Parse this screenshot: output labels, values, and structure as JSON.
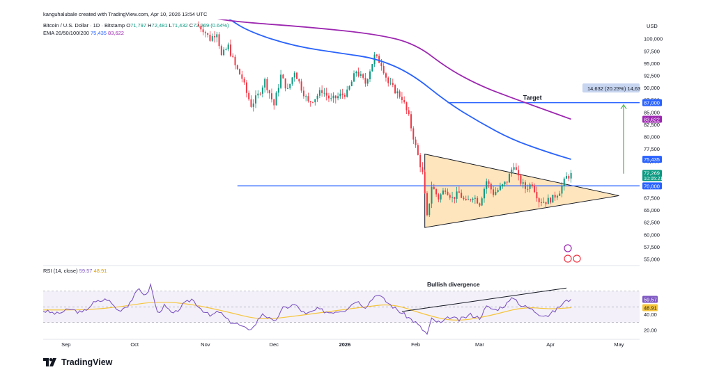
{
  "header": {
    "creator": "kanguhalubale created with TradingView.com, Apr 10, 2026 13:54 UTC",
    "symbol": "Bitcoin / U.S. Dollar · 1D · Bitstamp",
    "ohlc": {
      "o_label": "O",
      "o": "71,797",
      "h_label": "H",
      "h": "72,481",
      "l_label": "L",
      "l": "71,432",
      "c_label": "C",
      "c": "72,269",
      "chg": "(0.64%)"
    },
    "ema_label": "EMA 20/50/100/200",
    "ema_values": [
      "75,435",
      "83,622"
    ],
    "rsi_label": "RSI (14, close)",
    "rsi_values": [
      "59.57",
      "48.91"
    ]
  },
  "currency": "USD",
  "brand": "TradingView",
  "colors": {
    "up": "#089981",
    "down": "#f23645",
    "ema100": "#2962ff",
    "ema200": "#9c27b0",
    "level": "#2962ff",
    "triangle_fill": "#ffe0b2",
    "rsi": "#7e57c2",
    "rsi_ma": "#f5c53d",
    "target_arrow": "#4caf50"
  },
  "chart_data": [
    {
      "type": "candlestick",
      "title": "Bitcoin / U.S. Dollar · 1D · Bitstamp",
      "ylim": [
        54000,
        104000
      ],
      "y_ticks": [
        55000,
        57500,
        60000,
        62500,
        65000,
        67500,
        70000,
        72500,
        75000,
        77500,
        80000,
        82500,
        85000,
        87500,
        90000,
        92500,
        95000,
        97500,
        100000
      ],
      "y_tick_labels": [
        "55,000",
        "57,500",
        "60,000",
        "62,500",
        "65,000",
        "67,500",
        "70,000",
        "72,500",
        "75,000",
        "77,500",
        "80,000",
        "82,500",
        "85,000",
        "87,500",
        "90,000",
        "92,500",
        "95,000",
        "97,500",
        "100,000"
      ],
      "x_labels": [
        "Sep",
        "Oct",
        "Nov",
        "Dec",
        "2026",
        "Feb",
        "Mar",
        "Apr",
        "May"
      ],
      "x_start": "2025-08-22",
      "x_end": "2026-05-10",
      "x_label_dates": [
        "2025-09-01",
        "2025-10-01",
        "2025-11-01",
        "2025-12-01",
        "2026-01-01",
        "2026-02-01",
        "2026-03-01",
        "2026-04-01",
        "2026-05-01"
      ],
      "price_anchors": [
        [
          "2025-10-28",
          103000
        ],
        [
          "2025-10-31",
          102000
        ],
        [
          "2025-11-03",
          100000
        ],
        [
          "2025-11-06",
          101500
        ],
        [
          "2025-11-08",
          96500
        ],
        [
          "2025-11-11",
          98500
        ],
        [
          "2025-11-14",
          94500
        ],
        [
          "2025-11-17",
          92000
        ],
        [
          "2025-11-19",
          89000
        ],
        [
          "2025-11-21",
          86500
        ],
        [
          "2025-11-24",
          88500
        ],
        [
          "2025-11-27",
          91500
        ],
        [
          "2025-12-01",
          86500
        ],
        [
          "2025-12-04",
          92500
        ],
        [
          "2025-12-07",
          89500
        ],
        [
          "2025-12-10",
          93500
        ],
        [
          "2025-12-13",
          90000
        ],
        [
          "2025-12-16",
          87000
        ],
        [
          "2025-12-19",
          88000
        ],
        [
          "2025-12-22",
          89500
        ],
        [
          "2025-12-26",
          87500
        ],
        [
          "2025-12-30",
          88500
        ],
        [
          "2026-01-02",
          89000
        ],
        [
          "2026-01-06",
          93500
        ],
        [
          "2026-01-10",
          91000
        ],
        [
          "2026-01-14",
          96500
        ],
        [
          "2026-01-17",
          95000
        ],
        [
          "2026-01-20",
          91000
        ],
        [
          "2026-01-23",
          89500
        ],
        [
          "2026-01-26",
          88000
        ],
        [
          "2026-01-29",
          84000
        ],
        [
          "2026-02-01",
          78000
        ],
        [
          "2026-02-04",
          72500
        ],
        [
          "2026-02-06",
          63500
        ],
        [
          "2026-02-08",
          70000
        ],
        [
          "2026-02-11",
          67500
        ],
        [
          "2026-02-14",
          69500
        ],
        [
          "2026-02-17",
          67500
        ],
        [
          "2026-02-20",
          68500
        ],
        [
          "2026-02-23",
          66500
        ],
        [
          "2026-02-26",
          68000
        ],
        [
          "2026-03-01",
          66500
        ],
        [
          "2026-03-04",
          71000
        ],
        [
          "2026-03-07",
          68500
        ],
        [
          "2026-03-10",
          69500
        ],
        [
          "2026-03-13",
          71000
        ],
        [
          "2026-03-16",
          74500
        ],
        [
          "2026-03-18",
          71500
        ],
        [
          "2026-03-21",
          69500
        ],
        [
          "2026-03-24",
          70500
        ],
        [
          "2026-03-27",
          67000
        ],
        [
          "2026-03-30",
          66800
        ],
        [
          "2026-04-02",
          67500
        ],
        [
          "2026-04-05",
          69000
        ],
        [
          "2026-04-08",
          71800
        ],
        [
          "2026-04-10",
          72269
        ]
      ],
      "ema": [
        {
          "name": "EMA 100",
          "value_label": "75,435",
          "color": "#2962ff",
          "anchors": [
            [
              "2025-11-10",
              104500
            ],
            [
              "2025-11-20",
              101500
            ],
            [
              "2025-12-10",
              98500
            ],
            [
              "2026-01-01",
              97000
            ],
            [
              "2026-01-15",
              96000
            ],
            [
              "2026-01-30",
              93000
            ],
            [
              "2026-02-15",
              87000
            ],
            [
              "2026-03-01",
              83000
            ],
            [
              "2026-03-15",
              79500
            ],
            [
              "2026-03-30",
              77000
            ],
            [
              "2026-04-10",
              75435
            ]
          ]
        },
        {
          "name": "EMA 200",
          "value_label": "83,622",
          "color": "#9c27b0",
          "anchors": [
            [
              "2025-11-01",
              104500
            ],
            [
              "2025-11-15",
              103500
            ],
            [
              "2025-12-15",
              102500
            ],
            [
              "2026-01-15",
              101000
            ],
            [
              "2026-02-01",
              99000
            ],
            [
              "2026-02-15",
              94000
            ],
            [
              "2026-03-01",
              90500
            ],
            [
              "2026-03-15",
              88000
            ],
            [
              "2026-03-30",
              85500
            ],
            [
              "2026-04-10",
              83622
            ]
          ]
        }
      ],
      "level": {
        "value": 70000,
        "label": "70,000"
      },
      "target": {
        "label": "Target",
        "value": 87000,
        "value_label": "87,000",
        "measure_label": "14,632 (20.23%) 14,63",
        "from_value": 72500
      },
      "last_price": {
        "value": 72269,
        "label": "72,269",
        "countdown": "10:05:21"
      },
      "triangle": {
        "top": [
          "2026-02-05",
          76500
        ],
        "bottom": [
          "2026-02-05",
          61500
        ],
        "apex": [
          "2026-05-01",
          68000
        ]
      }
    },
    {
      "type": "line",
      "title": "RSI (14, close)",
      "ylim": [
        12,
        92
      ],
      "y_ticks": [
        20,
        40
      ],
      "y_tick_labels": [
        "20.00",
        "40.00"
      ],
      "band": [
        30,
        70
      ],
      "series": [
        {
          "name": "RSI",
          "value_label": "59.57",
          "color": "#7e57c2",
          "anchors": [
            [
              "2025-08-22",
              45
            ],
            [
              "2025-08-28",
              41
            ],
            [
              "2025-09-03",
              47
            ],
            [
              "2025-09-08",
              42
            ],
            [
              "2025-09-13",
              55
            ],
            [
              "2025-09-19",
              60
            ],
            [
              "2025-09-24",
              45
            ],
            [
              "2025-09-28",
              52
            ],
            [
              "2025-10-03",
              73
            ],
            [
              "2025-10-06",
              64
            ],
            [
              "2025-10-08",
              78
            ],
            [
              "2025-10-11",
              42
            ],
            [
              "2025-10-14",
              51
            ],
            [
              "2025-10-18",
              40
            ],
            [
              "2025-10-22",
              52
            ],
            [
              "2025-10-26",
              60
            ],
            [
              "2025-10-30",
              48
            ],
            [
              "2025-11-03",
              38
            ],
            [
              "2025-11-07",
              44
            ],
            [
              "2025-11-11",
              32
            ],
            [
              "2025-11-15",
              28
            ],
            [
              "2025-11-19",
              21
            ],
            [
              "2025-11-22",
              24
            ],
            [
              "2025-11-26",
              42
            ],
            [
              "2025-12-01",
              30
            ],
            [
              "2025-12-05",
              48
            ],
            [
              "2025-12-10",
              53
            ],
            [
              "2025-12-15",
              40
            ],
            [
              "2025-12-20",
              47
            ],
            [
              "2025-12-25",
              43
            ],
            [
              "2026-01-01",
              46
            ],
            [
              "2026-01-06",
              58
            ],
            [
              "2026-01-10",
              50
            ],
            [
              "2026-01-15",
              67
            ],
            [
              "2026-01-19",
              57
            ],
            [
              "2026-01-23",
              48
            ],
            [
              "2026-01-28",
              38
            ],
            [
              "2026-02-01",
              30
            ],
            [
              "2026-02-04",
              21
            ],
            [
              "2026-02-06",
              15
            ],
            [
              "2026-02-08",
              34
            ],
            [
              "2026-02-12",
              29
            ],
            [
              "2026-02-16",
              37
            ],
            [
              "2026-02-20",
              33
            ],
            [
              "2026-02-25",
              40
            ],
            [
              "2026-03-01",
              36
            ],
            [
              "2026-03-04",
              50
            ],
            [
              "2026-03-08",
              46
            ],
            [
              "2026-03-12",
              52
            ],
            [
              "2026-03-16",
              62
            ],
            [
              "2026-03-19",
              52
            ],
            [
              "2026-03-23",
              48
            ],
            [
              "2026-03-27",
              41
            ],
            [
              "2026-03-31",
              39
            ],
            [
              "2026-04-03",
              45
            ],
            [
              "2026-04-07",
              56
            ],
            [
              "2026-04-10",
              59.57
            ]
          ]
        },
        {
          "name": "RSI MA",
          "value_label": "48.91",
          "color": "#f5c53d",
          "anchors": [
            [
              "2025-08-22",
              46
            ],
            [
              "2025-09-10",
              46
            ],
            [
              "2025-09-25",
              50
            ],
            [
              "2025-10-10",
              57
            ],
            [
              "2025-10-25",
              54
            ],
            [
              "2025-11-10",
              44
            ],
            [
              "2025-11-25",
              33
            ],
            [
              "2025-12-10",
              38
            ],
            [
              "2025-12-25",
              44
            ],
            [
              "2026-01-10",
              50
            ],
            [
              "2026-01-22",
              54
            ],
            [
              "2026-02-05",
              40
            ],
            [
              "2026-02-18",
              31
            ],
            [
              "2026-03-05",
              38
            ],
            [
              "2026-03-20",
              50
            ],
            [
              "2026-04-01",
              47
            ],
            [
              "2026-04-10",
              48.91
            ]
          ]
        }
      ],
      "annotation": {
        "label": "Bullish divergence"
      }
    }
  ]
}
